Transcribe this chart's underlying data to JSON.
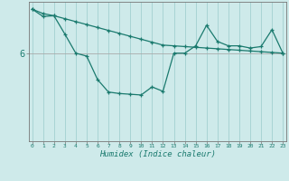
{
  "xlabel": "Humidex (Indice chaleur)",
  "bg_color": "#ceeaea",
  "line_color": "#1a7a6e",
  "grid_color_x": "#a8d4d4",
  "grid_color_y": "#aaaaaa",
  "x_values": [
    0,
    1,
    2,
    3,
    4,
    5,
    6,
    7,
    8,
    9,
    10,
    11,
    12,
    13,
    14,
    15,
    16,
    17,
    18,
    19,
    20,
    21,
    22,
    23
  ],
  "line1": [
    9.0,
    8.7,
    8.55,
    8.35,
    8.15,
    7.95,
    7.75,
    7.55,
    7.35,
    7.15,
    6.95,
    6.75,
    6.55,
    6.5,
    6.45,
    6.4,
    6.35,
    6.3,
    6.25,
    6.2,
    6.15,
    6.1,
    6.05,
    6.0
  ],
  "line2": [
    9.0,
    8.5,
    8.55,
    7.3,
    6.0,
    5.8,
    4.2,
    3.35,
    3.25,
    3.2,
    3.15,
    3.7,
    3.4,
    6.0,
    6.0,
    6.5,
    7.9,
    6.8,
    6.5,
    6.5,
    6.35,
    6.45,
    7.6,
    6.0
  ],
  "ytick_vals": [
    6
  ],
  "ytick_labels": [
    "6"
  ],
  "ylim": [
    0,
    9.5
  ],
  "xlim": [
    -0.3,
    23.3
  ]
}
